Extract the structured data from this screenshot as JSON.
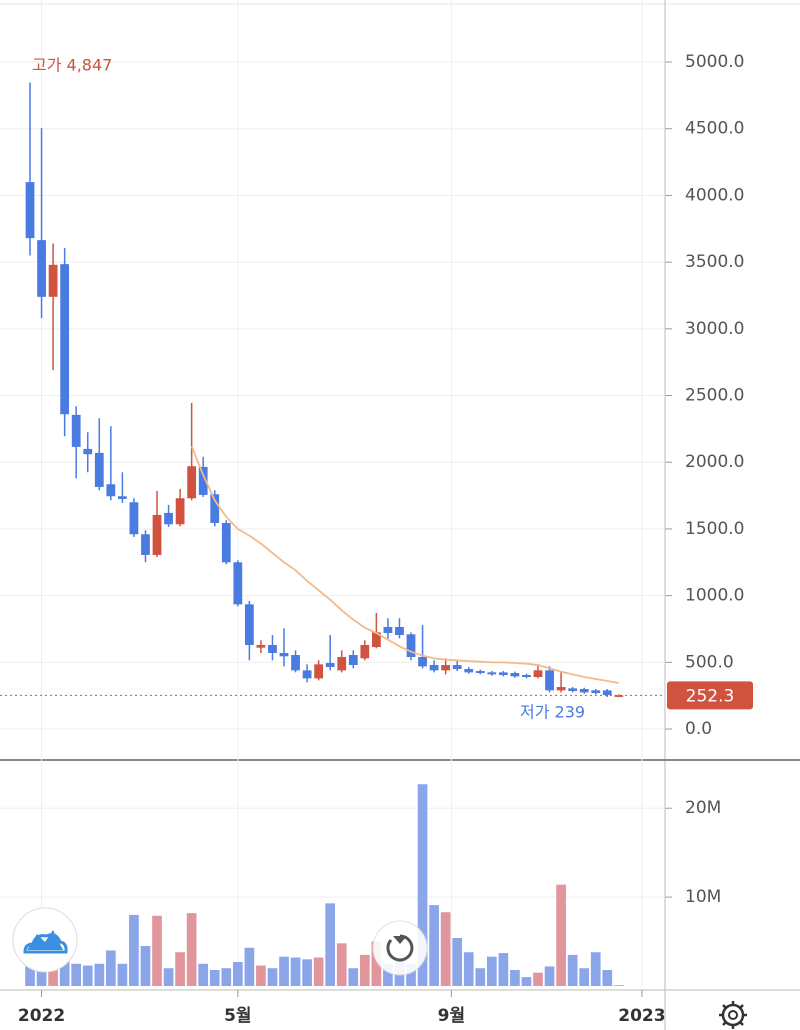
{
  "chart_data": {
    "type": "candlestick",
    "high_label": "고가 4,847",
    "low_label": "저가 239",
    "last_price": 252.3,
    "up_color": "#d0533f",
    "down_color": "#4a7be0",
    "ma_color": "#f4b98a",
    "volume_up_color": "#e0969c",
    "volume_down_color": "#8aa5e8",
    "open": [
      4100,
      3665,
      3240,
      3485,
      2355,
      2100,
      2070,
      1835,
      1745,
      1700,
      1460,
      1305,
      1620,
      1535,
      1730,
      1965,
      1760,
      1545,
      1250,
      935,
      610,
      630,
      570,
      555,
      440,
      380,
      495,
      440,
      555,
      530,
      615,
      765,
      765,
      710,
      540,
      480,
      440,
      480,
      450,
      435,
      425,
      425,
      420,
      405,
      390,
      440,
      290,
      305,
      300,
      290,
      290,
      245
    ],
    "high": [
      4847,
      4505,
      3640,
      3605,
      2420,
      2225,
      2330,
      2270,
      1925,
      1730,
      1490,
      1785,
      1680,
      1800,
      2445,
      2040,
      1790,
      1565,
      1265,
      960,
      665,
      705,
      755,
      590,
      485,
      515,
      705,
      590,
      590,
      665,
      870,
      830,
      830,
      725,
      780,
      515,
      530,
      515,
      465,
      445,
      435,
      435,
      430,
      415,
      485,
      470,
      425,
      315,
      310,
      300,
      300,
      260
    ],
    "low": [
      3550,
      3080,
      2690,
      2195,
      1880,
      1925,
      1790,
      1715,
      1695,
      1440,
      1250,
      1290,
      1515,
      1520,
      1715,
      1740,
      1520,
      1235,
      920,
      515,
      570,
      515,
      470,
      425,
      350,
      365,
      440,
      425,
      455,
      515,
      605,
      665,
      680,
      515,
      455,
      425,
      410,
      435,
      415,
      410,
      400,
      395,
      385,
      380,
      380,
      275,
      275,
      275,
      265,
      260,
      240,
      239
    ],
    "close": [
      3680,
      3240,
      3480,
      2360,
      2115,
      2060,
      1815,
      1745,
      1725,
      1460,
      1305,
      1605,
      1535,
      1730,
      1970,
      1755,
      1545,
      1250,
      935,
      630,
      630,
      570,
      545,
      440,
      380,
      485,
      465,
      540,
      480,
      630,
      725,
      720,
      705,
      540,
      470,
      440,
      480,
      450,
      425,
      420,
      410,
      405,
      395,
      390,
      440,
      290,
      315,
      285,
      275,
      270,
      255,
      252.3
    ],
    "ma": [
      null,
      null,
      null,
      null,
      null,
      null,
      null,
      null,
      null,
      null,
      null,
      null,
      null,
      null,
      2120,
      1905,
      1715,
      1590,
      1500,
      1450,
      1390,
      1320,
      1250,
      1190,
      1110,
      1040,
      970,
      890,
      820,
      760,
      720,
      670,
      620,
      580,
      550,
      530,
      520,
      515,
      510,
      505,
      500,
      500,
      495,
      490,
      480,
      455,
      430,
      410,
      390,
      375,
      360,
      345
    ],
    "volume": [
      2200000,
      3500000,
      2000000,
      3000000,
      2500000,
      2300000,
      2500000,
      4000000,
      2500000,
      8000000,
      4500000,
      7900000,
      2000000,
      3800000,
      8200000,
      2500000,
      1800000,
      2000000,
      2700000,
      4300000,
      2300000,
      2000000,
      3300000,
      3200000,
      3000000,
      3200000,
      9300000,
      4800000,
      2000000,
      3500000,
      5000000,
      2500000,
      3000000,
      2500000,
      22700000,
      9100000,
      8300000,
      5400000,
      3800000,
      2000000,
      3300000,
      3700000,
      1800000,
      1000000,
      1500000,
      2200000,
      11400000,
      3500000,
      2000000,
      3800000,
      1800000,
      100000
    ],
    "xlim": [
      -2.6,
      55
    ],
    "xticks": [
      {
        "value": 1,
        "label": "2022"
      },
      {
        "value": 18,
        "label": "5월"
      },
      {
        "value": 36.5,
        "label": "9월"
      },
      {
        "value": 53,
        "label": "2023"
      }
    ],
    "ylim": [
      -232,
      5465
    ],
    "yticks": [
      {
        "value": 0,
        "label": "0.0"
      },
      {
        "value": 500,
        "label": "500.0"
      },
      {
        "value": 1000,
        "label": "1000.0"
      },
      {
        "value": 1500,
        "label": "1500.0"
      },
      {
        "value": 2000,
        "label": "2000.0"
      },
      {
        "value": 2500,
        "label": "2500.0"
      },
      {
        "value": 3000,
        "label": "3000.0"
      },
      {
        "value": 3500,
        "label": "3500.0"
      },
      {
        "value": 4000,
        "label": "4000.0"
      },
      {
        "value": 4500,
        "label": "4500.0"
      },
      {
        "value": 5000,
        "label": "5000.0"
      }
    ],
    "volume_ylim": [
      0,
      25200000
    ],
    "volume_yticks": [
      {
        "value": 10000000,
        "label": "10M"
      },
      {
        "value": 20000000,
        "label": "20M"
      }
    ],
    "grid": true
  }
}
